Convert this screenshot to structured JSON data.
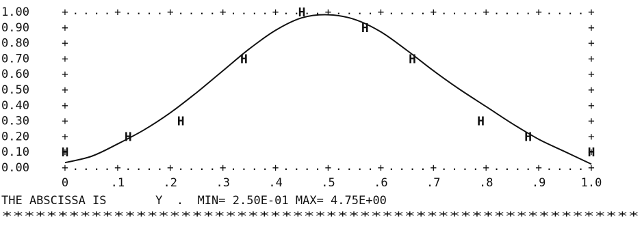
{
  "chart_data": {
    "type": "line",
    "y_ticks": [
      "1.00",
      "0.90",
      "0.80",
      "0.70",
      "0.60",
      "0.50",
      "0.40",
      "0.30",
      "0.20",
      "0.10",
      "0.00"
    ],
    "x_ticks": [
      "0",
      ".1",
      ".2",
      ".3",
      ".4",
      ".5",
      ".6",
      ".7",
      ".8",
      ".9",
      "1.0"
    ],
    "xlim": [
      0,
      1
    ],
    "ylim": [
      0,
      1
    ],
    "point_marker": "H",
    "points": [
      {
        "x": 0.0,
        "y": 0.1
      },
      {
        "x": 0.12,
        "y": 0.2
      },
      {
        "x": 0.22,
        "y": 0.3
      },
      {
        "x": 0.34,
        "y": 0.7
      },
      {
        "x": 0.45,
        "y": 1.0
      },
      {
        "x": 0.57,
        "y": 0.9
      },
      {
        "x": 0.66,
        "y": 0.7
      },
      {
        "x": 0.79,
        "y": 0.3
      },
      {
        "x": 0.88,
        "y": 0.2
      },
      {
        "x": 1.0,
        "y": 0.1
      }
    ],
    "curve": [
      {
        "x": 0.0,
        "y": 0.03
      },
      {
        "x": 0.05,
        "y": 0.07
      },
      {
        "x": 0.1,
        "y": 0.15
      },
      {
        "x": 0.15,
        "y": 0.24
      },
      {
        "x": 0.2,
        "y": 0.35
      },
      {
        "x": 0.25,
        "y": 0.48
      },
      {
        "x": 0.3,
        "y": 0.62
      },
      {
        "x": 0.35,
        "y": 0.76
      },
      {
        "x": 0.4,
        "y": 0.88
      },
      {
        "x": 0.45,
        "y": 0.96
      },
      {
        "x": 0.5,
        "y": 0.98
      },
      {
        "x": 0.55,
        "y": 0.95
      },
      {
        "x": 0.6,
        "y": 0.87
      },
      {
        "x": 0.65,
        "y": 0.75
      },
      {
        "x": 0.7,
        "y": 0.62
      },
      {
        "x": 0.75,
        "y": 0.5
      },
      {
        "x": 0.8,
        "y": 0.39
      },
      {
        "x": 0.85,
        "y": 0.28
      },
      {
        "x": 0.9,
        "y": 0.18
      },
      {
        "x": 0.95,
        "y": 0.1
      },
      {
        "x": 1.0,
        "y": 0.02
      }
    ],
    "caption": "THE ABSCISSA IS       Y  .  MIN= 2.50E-01 MAX= 4.75E+00",
    "separator": "*********************************************************",
    "frame_symbols": {
      "corner": "+",
      "dot": "."
    }
  }
}
